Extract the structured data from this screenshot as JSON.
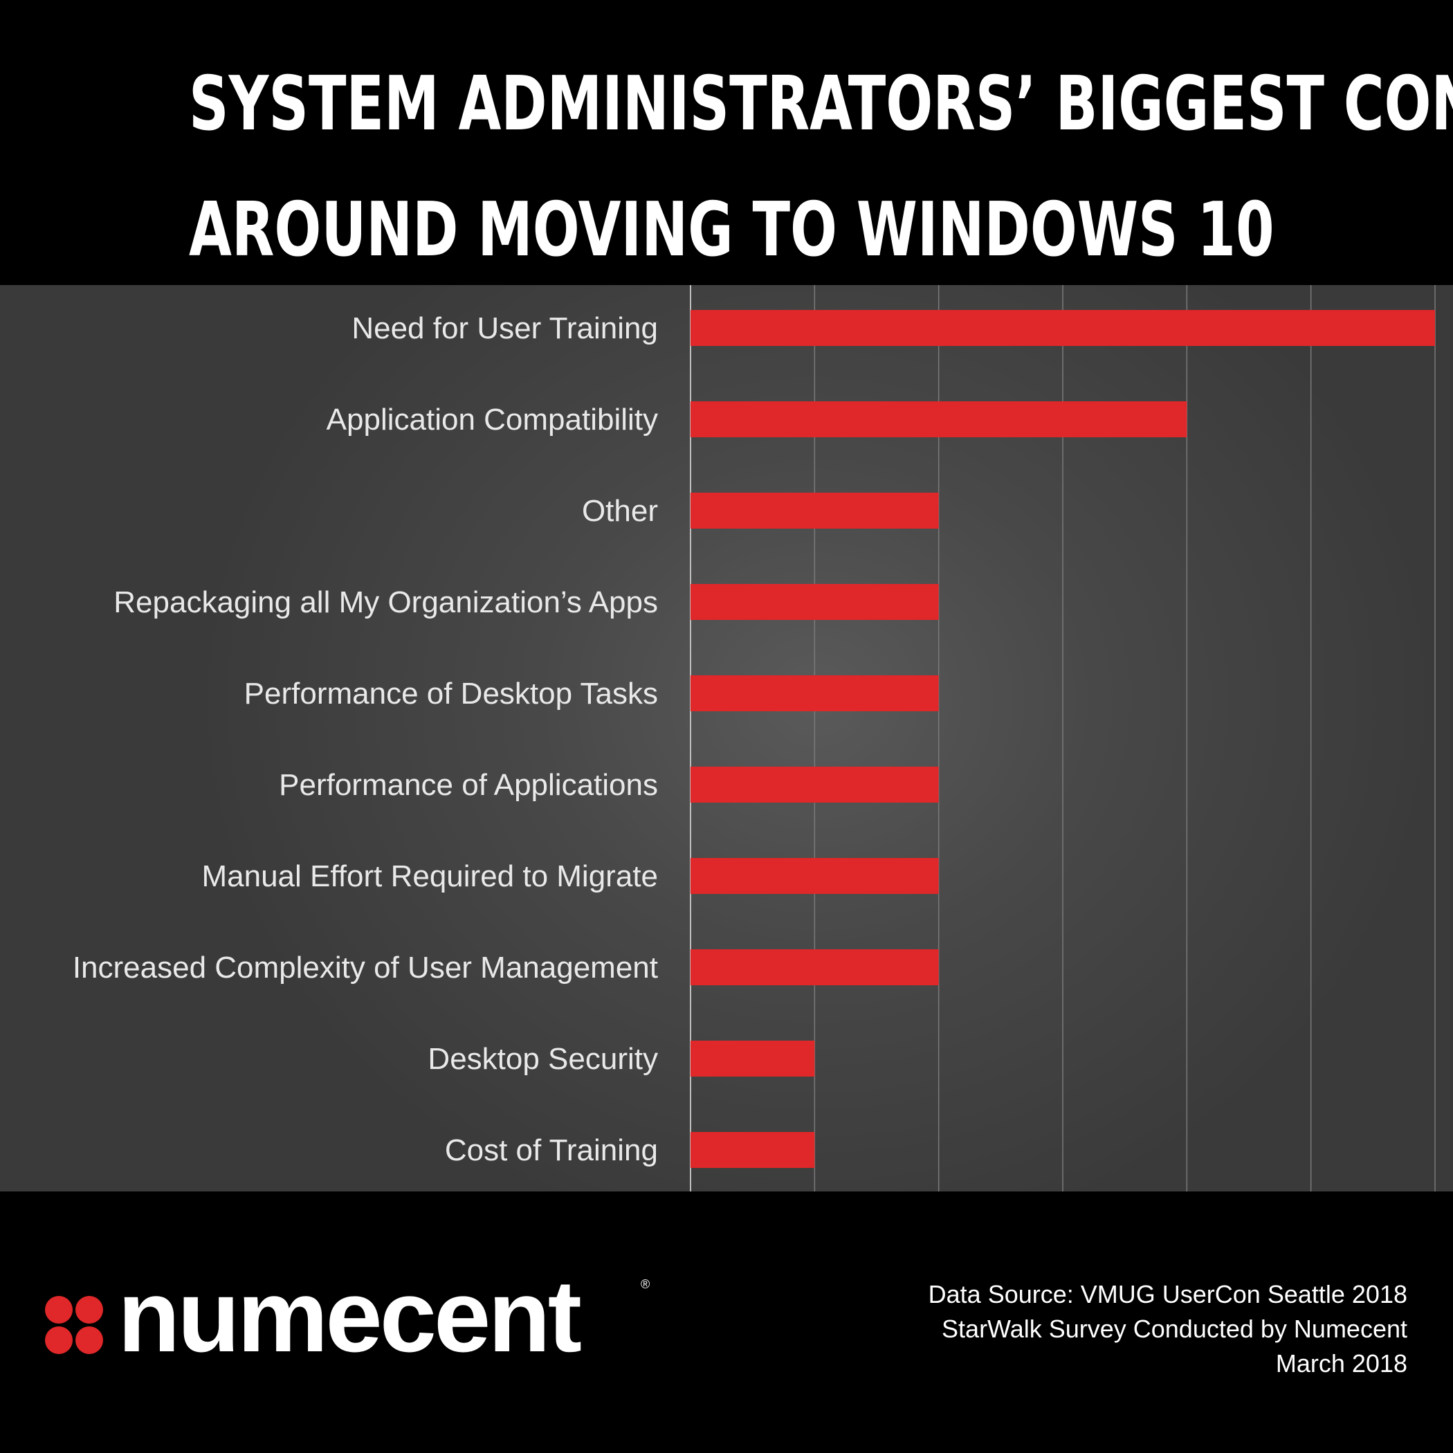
{
  "title": {
    "line1": "SYSTEM ADMINISTRATORS’ BIGGEST CONCERNS",
    "line2": "AROUND MOVING TO WINDOWS 10"
  },
  "colors": {
    "background": "#000000",
    "plot_background": "#484848",
    "bar": "#e02729",
    "gridline": "#7a7a7a",
    "label": "#e9e9e9",
    "logo_red": "#e02729"
  },
  "chart_data": {
    "type": "bar",
    "orientation": "horizontal",
    "categories": [
      "Need for User Training",
      "Application Compatibility",
      "Other",
      "Repackaging all My Organization’s Apps",
      "Performance of Desktop Tasks",
      "Performance of Applications",
      "Manual Effort Required to Migrate",
      "Increased Complexity of User Management",
      "Desktop Security",
      "Cost of Training"
    ],
    "values": [
      6,
      4,
      2,
      2,
      2,
      2,
      2,
      2,
      1,
      1
    ],
    "xlim": [
      0,
      6
    ],
    "grid": true,
    "tick_labels_shown": false
  },
  "logo": {
    "text": "numecent",
    "registered": "®",
    "mark_icon": "four-petal-logo-icon"
  },
  "source": {
    "line1": "Data Source: VMUG UserCon Seattle 2018",
    "line2": "StarWalk Survey Conducted by Numecent",
    "line3": "March 2018"
  }
}
